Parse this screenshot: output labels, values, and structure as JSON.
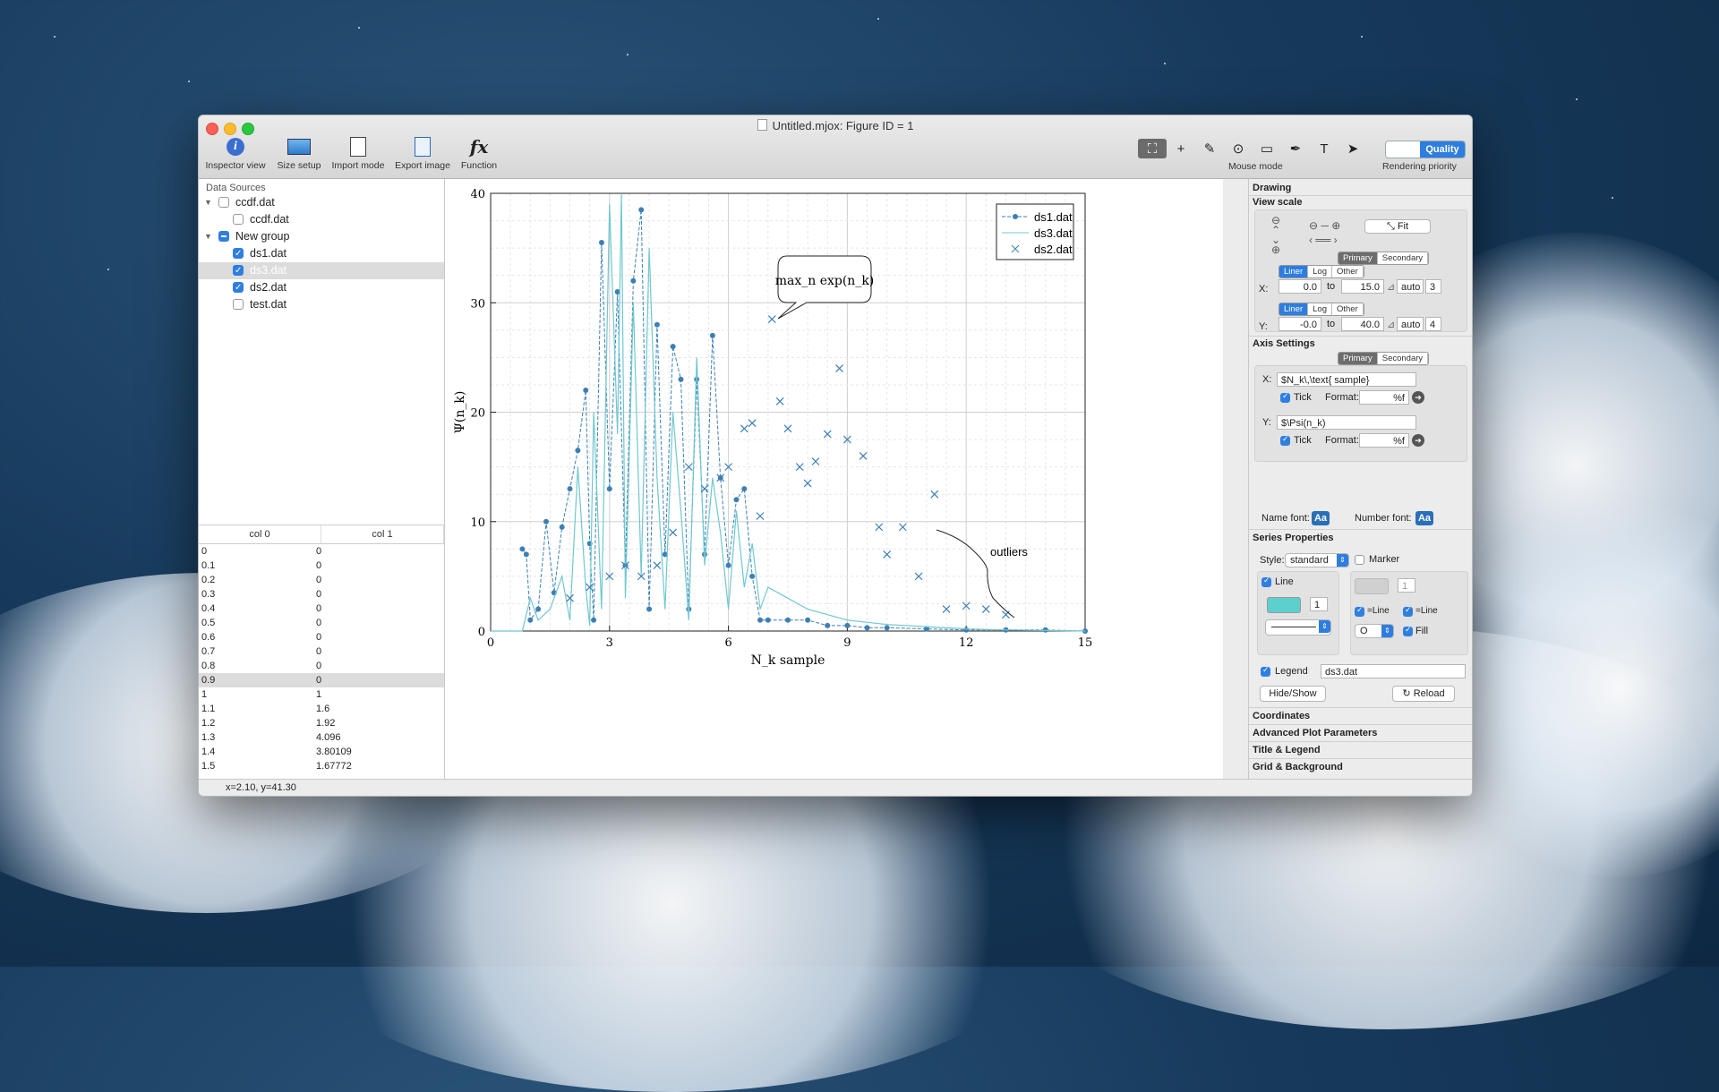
{
  "window": {
    "title": "Untitled.mjox: Figure ID = 1"
  },
  "toolbar": {
    "inspector_label": "Inspector view",
    "size_label": "Size setup",
    "import_label": "Import mode",
    "export_label": "Export image",
    "function_label": "Function",
    "mouse_mode_label": "Mouse mode",
    "quality_label": "Quality",
    "rendering_label": "Rendering priority"
  },
  "sources": {
    "header": "Data Sources",
    "items": [
      {
        "label": "ccdf.dat",
        "level": 0,
        "checked": "off",
        "expand": true
      },
      {
        "label": "ccdf.dat",
        "level": 1,
        "checked": "off"
      },
      {
        "label": "New group",
        "level": 0,
        "checked": "mixed",
        "expand": true
      },
      {
        "label": "ds1.dat",
        "level": 1,
        "checked": "on"
      },
      {
        "label": "ds3.dat",
        "level": 1,
        "checked": "on",
        "selected": true
      },
      {
        "label": "ds2.dat",
        "level": 1,
        "checked": "on"
      },
      {
        "label": "test.dat",
        "level": 1,
        "checked": "off"
      }
    ]
  },
  "table": {
    "headers": [
      "col 0",
      "col 1"
    ],
    "rows": [
      [
        "0",
        "0"
      ],
      [
        "0.1",
        "0"
      ],
      [
        "0.2",
        "0"
      ],
      [
        "0.3",
        "0"
      ],
      [
        "0.4",
        "0"
      ],
      [
        "0.5",
        "0"
      ],
      [
        "0.6",
        "0"
      ],
      [
        "0.7",
        "0"
      ],
      [
        "0.8",
        "0"
      ],
      [
        "0.9",
        "0"
      ],
      [
        "1",
        "1"
      ],
      [
        "1.1",
        "1.6"
      ],
      [
        "1.2",
        "1.92"
      ],
      [
        "1.3",
        "4.096"
      ],
      [
        "1.4",
        "3.80109"
      ],
      [
        "1.5",
        "1.67772"
      ]
    ],
    "selected_row": 9
  },
  "status": {
    "coords": "x=2.10, y=41.30"
  },
  "chart_data": {
    "type": "line",
    "xlabel": "N_k sample",
    "ylabel": "Ψ(n_k)",
    "xlim": [
      0,
      15
    ],
    "ylim": [
      0,
      40
    ],
    "xticks": [
      "0",
      "3",
      "6",
      "9",
      "12",
      "15"
    ],
    "yticks": [
      "0",
      "10",
      "20",
      "30",
      "40"
    ],
    "grid": true,
    "legend_position": "top-right",
    "annotation_bubble": "max_n exp(n_k)",
    "annotation_text": "outliers",
    "series": [
      {
        "name": "ds1.dat",
        "style": "dashed-marker",
        "color": "#3c7fb5",
        "x": [
          0.8,
          0.9,
          1.0,
          1.2,
          1.4,
          1.6,
          1.8,
          2.0,
          2.2,
          2.4,
          2.5,
          2.6,
          2.8,
          3.0,
          3.2,
          3.4,
          3.6,
          3.8,
          4.0,
          4.2,
          4.4,
          4.6,
          4.8,
          5.0,
          5.2,
          5.4,
          5.6,
          5.8,
          6.0,
          6.2,
          6.4,
          6.6,
          6.8,
          7.0,
          7.5,
          8.0,
          8.5,
          9.0,
          9.5,
          10.0,
          11.0,
          12.0,
          13.0,
          14.0,
          15.0
        ],
        "y": [
          7.5,
          7,
          1,
          2,
          10,
          3.5,
          9.5,
          13,
          16.5,
          22,
          8,
          1,
          35.5,
          13,
          31,
          6,
          32,
          38.5,
          2,
          28,
          7,
          26,
          23,
          2,
          23,
          7,
          27,
          14,
          6,
          12,
          13,
          5,
          1,
          1,
          1,
          1,
          0.5,
          0.5,
          0.3,
          0.3,
          0.2,
          0.1,
          0.1,
          0.1,
          0
        ]
      },
      {
        "name": "ds3.dat",
        "style": "solid",
        "color": "#6fc8cf",
        "x": [
          0,
          0.8,
          1.0,
          1.2,
          1.5,
          1.8,
          2.0,
          2.2,
          2.4,
          2.5,
          2.6,
          2.8,
          3.0,
          3.2,
          3.3,
          3.4,
          3.6,
          3.8,
          4.0,
          4.2,
          4.4,
          4.6,
          4.8,
          5.0,
          5.2,
          5.4,
          5.6,
          5.8,
          6.0,
          6.2,
          6.4,
          6.6,
          6.8,
          7.0,
          7.5,
          8.0,
          8.5,
          9.0,
          10.0,
          11.0,
          12.0,
          13.0,
          15.0
        ],
        "y": [
          0,
          0,
          3,
          1,
          2,
          5,
          1,
          15,
          4,
          0.5,
          20,
          2,
          39,
          18,
          40,
          3,
          30,
          5,
          35,
          14,
          2,
          20,
          11,
          1,
          25,
          6,
          14,
          9,
          2,
          11,
          4,
          8,
          2,
          4,
          3,
          2,
          1.5,
          1,
          0.6,
          0.4,
          0.2,
          0.1,
          0
        ]
      },
      {
        "name": "ds2.dat",
        "style": "markers",
        "color": "#3c7fb5",
        "x": [
          2.0,
          2.5,
          3.0,
          3.4,
          3.8,
          4.2,
          4.6,
          5.0,
          5.4,
          5.8,
          6.0,
          6.4,
          6.6,
          6.8,
          7.1,
          7.3,
          7.5,
          7.8,
          8.0,
          8.2,
          8.5,
          8.8,
          9.0,
          9.4,
          9.8,
          10.0,
          10.4,
          10.8,
          11.2,
          11.5,
          12.0,
          12.5,
          13.0
        ],
        "y": [
          3,
          4,
          5,
          6,
          5,
          6,
          9,
          15,
          13,
          14,
          15,
          18.5,
          19,
          10.5,
          28.5,
          21,
          18.5,
          15,
          13.5,
          15.5,
          18,
          24,
          17.5,
          16,
          9.5,
          7,
          9.5,
          5,
          12.5,
          2,
          2.3,
          2,
          1.5
        ]
      }
    ]
  },
  "drawing": {
    "section": "Drawing",
    "view_scale": "View scale",
    "fit": "Fit",
    "primary": "Primary",
    "secondary": "Secondary",
    "x_label": "X:",
    "y_label": "Y:",
    "liner": "Liner",
    "log": "Log",
    "other": "Other",
    "x_from": "0.0",
    "x_to": "15.0",
    "y_from": "-0.0",
    "y_to": "40.0",
    "to": "to",
    "auto": "auto",
    "x_ticks": "3",
    "y_ticks": "4"
  },
  "axis": {
    "section": "Axis Settings",
    "primary": "Primary",
    "secondary": "Secondary",
    "x_label": "X:",
    "y_label": "Y:",
    "x_value": "$N_k\\,\\text{ sample}",
    "y_value": "$\\Psi(n_k)",
    "tick": "Tick",
    "format": "Format:",
    "format_value": "%f",
    "name_font": "Name font:",
    "number_font": "Number font:",
    "font_button": "Aa"
  },
  "series_props": {
    "section": "Series Properties",
    "style_label": "Style:",
    "style_value": "standard",
    "marker": "Marker",
    "line": "Line",
    "line_width": "1",
    "marker_size": "1",
    "eq_line": "=Line",
    "fill": "Fill",
    "marker_shape": "O",
    "legend": "Legend",
    "legend_value": "ds3.dat",
    "hide_show": "Hide/Show",
    "reload": "Reload",
    "line_color": "#5ccfcf"
  },
  "collapsed_sections": [
    "Coordinates",
    "Advanced Plot Parameters",
    "Title & Legend",
    "Grid & Background"
  ]
}
